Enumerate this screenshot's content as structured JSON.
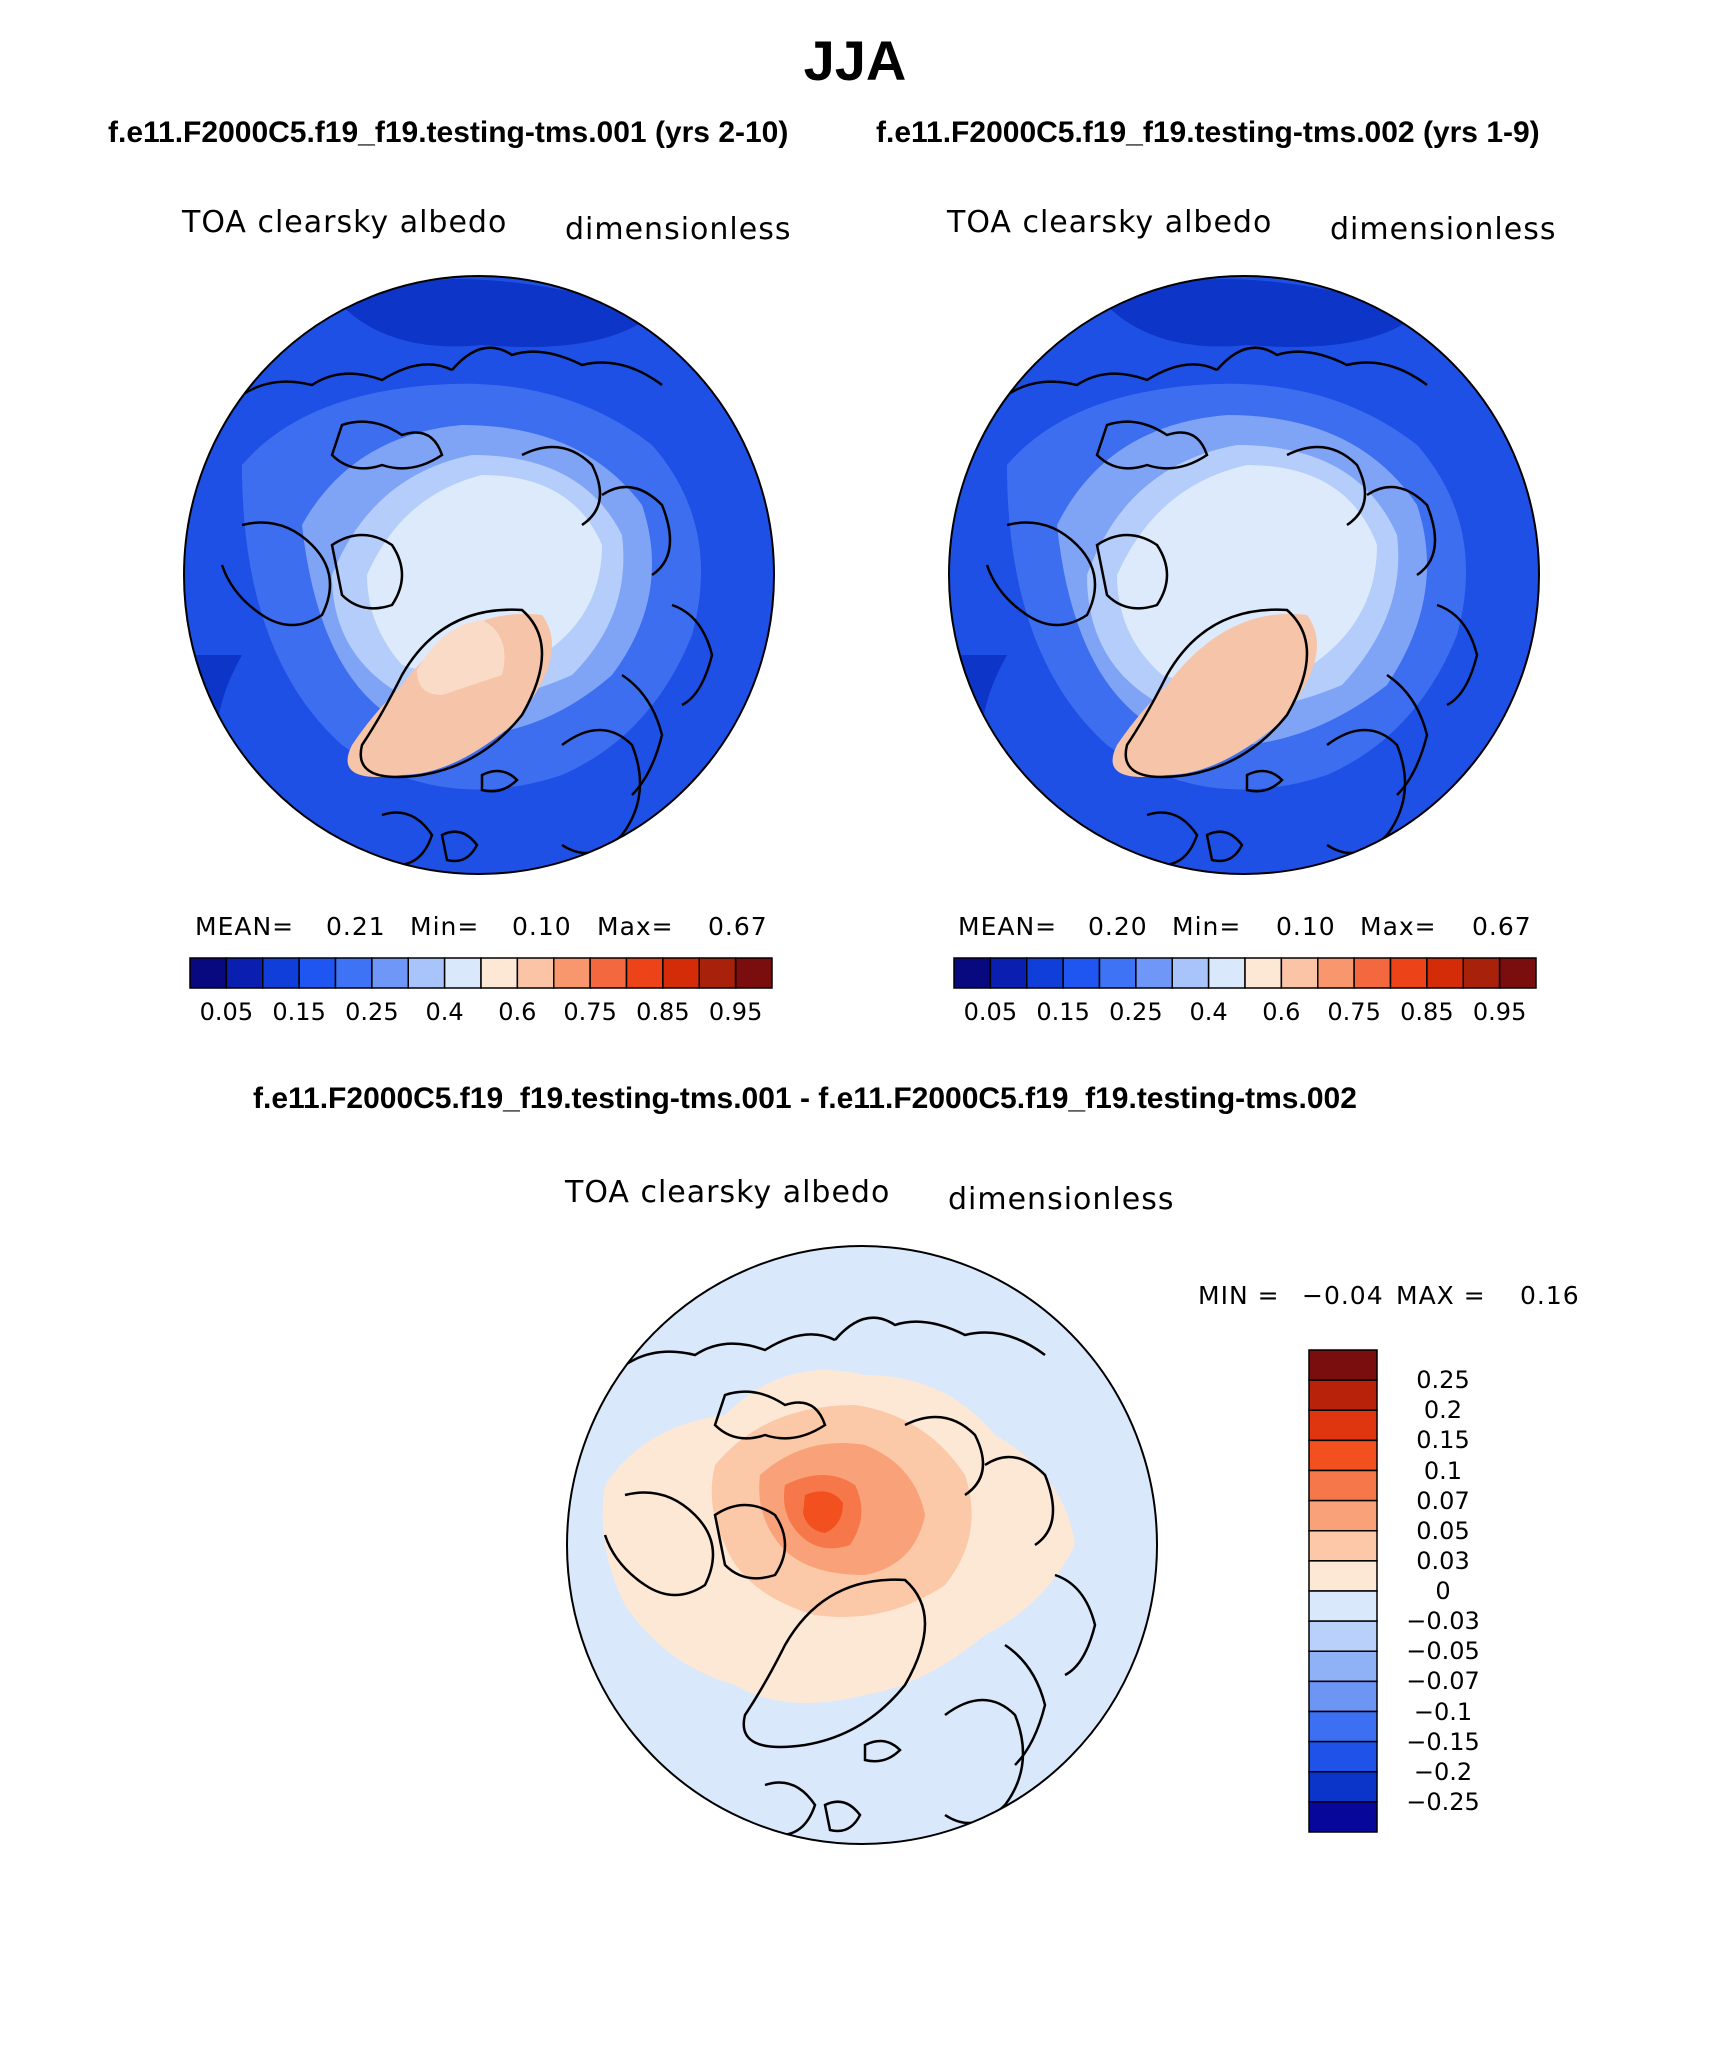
{
  "title": "JJA",
  "subtitle_left": "f.e11.F2000C5.f19_f19.testing-tms.001 (yrs 2-10)",
  "subtitle_right": "f.e11.F2000C5.f19_f19.testing-tms.002 (yrs 1-9)",
  "diff_title": "f.e11.F2000C5.f19_f19.testing-tms.001 - f.e11.F2000C5.f19_f19.testing-tms.002",
  "panels": [
    {
      "variable": "TOA clearsky albedo",
      "units": "dimensionless",
      "mean_label": "MEAN=",
      "mean": "0.21",
      "min_label": "Min=",
      "min": "0.10",
      "max_label": "Max=",
      "max": "0.67"
    },
    {
      "variable": "TOA clearsky albedo",
      "units": "dimensionless",
      "mean_label": "MEAN=",
      "mean": "0.20",
      "min_label": "Min=",
      "min": "0.10",
      "max_label": "Max=",
      "max": "0.67"
    }
  ],
  "diff_panel": {
    "variable": "TOA clearsky albedo",
    "units": "dimensionless",
    "min_label": "MIN =",
    "min": "−0.04",
    "max_label": "MAX =",
    "max": "0.16"
  },
  "horiz_colorbar": {
    "colors": [
      "#08087f",
      "#0a1fb0",
      "#0f3fd8",
      "#1f55f0",
      "#3f73f5",
      "#6f97f7",
      "#a9c4fa",
      "#d9e8fb",
      "#fde8d6",
      "#fbc4a6",
      "#f8976e",
      "#f4683f",
      "#ec4319",
      "#d42b08",
      "#a8210a",
      "#7a0d0d"
    ],
    "ticks": [
      "0.05",
      "0.15",
      "0.25",
      "0.4",
      "0.6",
      "0.75",
      "0.85",
      "0.95"
    ]
  },
  "vert_colorbar": {
    "colors": [
      "#7a0d0d",
      "#b8210a",
      "#e0360f",
      "#f2501f",
      "#f6774a",
      "#f9a27a",
      "#fbc8a8",
      "#fde8d6",
      "#d9e8fb",
      "#b9d0fb",
      "#8fb2f7",
      "#6c95f4",
      "#3d6ff2",
      "#1f52e8",
      "#0b34c9",
      "#07089a"
    ],
    "ticks": [
      "0.25",
      "0.2",
      "0.15",
      "0.1",
      "0.07",
      "0.05",
      "0.03",
      "0",
      "−0.03",
      "−0.05",
      "−0.07",
      "−0.1",
      "−0.15",
      "−0.2",
      "−0.25"
    ]
  }
}
